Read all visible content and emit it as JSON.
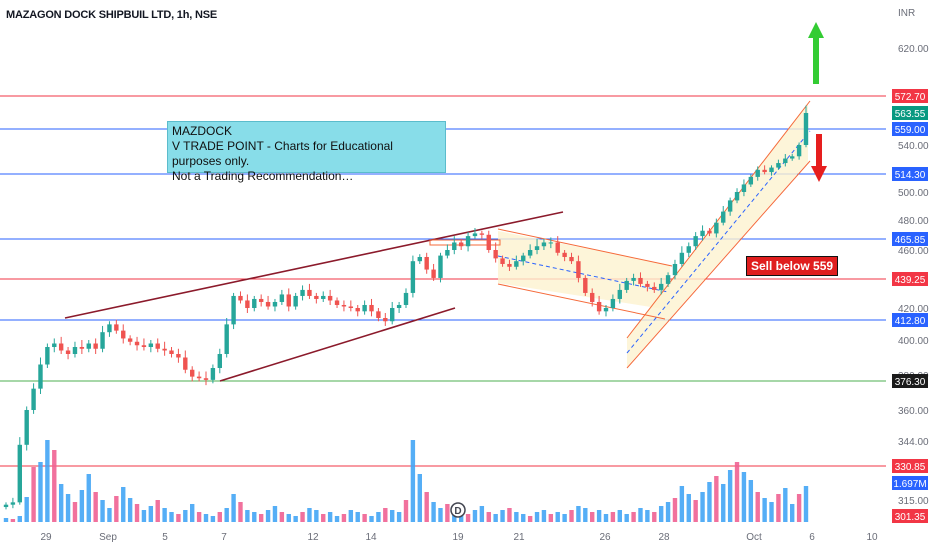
{
  "header": {
    "title": "MAZAGON DOCK SHIPBUIL LTD, 1h, NSE",
    "currency": "INR"
  },
  "annotation": {
    "line1": "MAZDOCK",
    "line2": "V TRADE POINT - Charts for Educational purposes only.",
    "line3": "Not a Trading Recommendation…"
  },
  "sell_label": "Sell below 559",
  "event_marker": "D",
  "colors": {
    "up": "#26a69a",
    "down": "#ef5350",
    "vol_up": "#42a5f5",
    "vol_down": "#f06292",
    "blue_level": "#2962ff",
    "red_level": "#f23645",
    "green_level": "#4caf50",
    "trend": "#8b1a2b",
    "channel": "#f56a3a"
  },
  "chart_data": {
    "type": "candlestick",
    "title": "MAZAGON DOCK SHIPBUIL LTD, 1h, NSE",
    "y_unit": "INR",
    "y_ticks": [
      315,
      344,
      360,
      380,
      400,
      420,
      460,
      480,
      500,
      540,
      620
    ],
    "y_tick_labels": [
      "315.00",
      "344.00",
      "360.00",
      "380.00",
      "400.00",
      "420.00",
      "460.00",
      "480.00",
      "500.00",
      "540.00",
      "620.00"
    ],
    "x_tick_labels": [
      "29",
      "Sep",
      "5",
      "7",
      "12",
      "14",
      "19",
      "21",
      "26",
      "28",
      "Oct",
      "6",
      "10"
    ],
    "price_levels": [
      {
        "label": "572.70",
        "value": 572.7,
        "color": "red"
      },
      {
        "label": "563.55",
        "value": 563.55,
        "color": "green",
        "current": true
      },
      {
        "label": "559.00",
        "value": 559.0,
        "color": "blue"
      },
      {
        "label": "514.30",
        "value": 514.3,
        "color": "blue"
      },
      {
        "label": "465.85",
        "value": 465.85,
        "color": "blue"
      },
      {
        "label": "439.25",
        "value": 439.25,
        "color": "red"
      },
      {
        "label": "412.80",
        "value": 412.8,
        "color": "blue"
      },
      {
        "label": "376.30",
        "value": 376.3,
        "color": "green"
      },
      {
        "label": "330.85",
        "value": 330.85,
        "color": "red"
      },
      {
        "label": "1.697M",
        "value": 1.697,
        "color": "blue",
        "volume": true
      },
      {
        "label": "301.35",
        "value": 301.35,
        "color": "red"
      }
    ],
    "close_series": [
      311,
      313,
      342,
      360,
      372,
      386,
      396,
      398,
      394,
      392,
      396,
      395,
      398,
      395,
      405,
      410,
      406,
      401,
      399,
      397,
      396,
      398,
      395,
      394,
      392,
      390,
      383,
      379,
      378,
      377,
      384,
      392,
      410,
      428,
      425,
      420,
      426,
      424,
      421,
      424,
      429,
      421,
      428,
      432,
      428,
      426,
      428,
      425,
      422,
      421,
      420,
      418,
      422,
      418,
      414,
      412,
      420,
      422,
      430,
      452,
      455,
      446,
      440,
      456,
      460,
      464,
      462,
      468,
      470,
      469,
      460,
      454,
      450,
      448,
      452,
      456,
      460,
      462,
      464,
      464,
      458,
      455,
      452,
      440,
      430,
      424,
      418,
      420,
      426,
      432,
      438,
      440,
      436,
      434,
      432,
      436,
      442,
      450,
      458,
      462,
      468,
      472,
      470,
      478,
      486,
      494,
      500,
      506,
      512,
      518,
      516,
      520,
      524,
      528,
      530,
      540,
      563.55
    ]
  }
}
